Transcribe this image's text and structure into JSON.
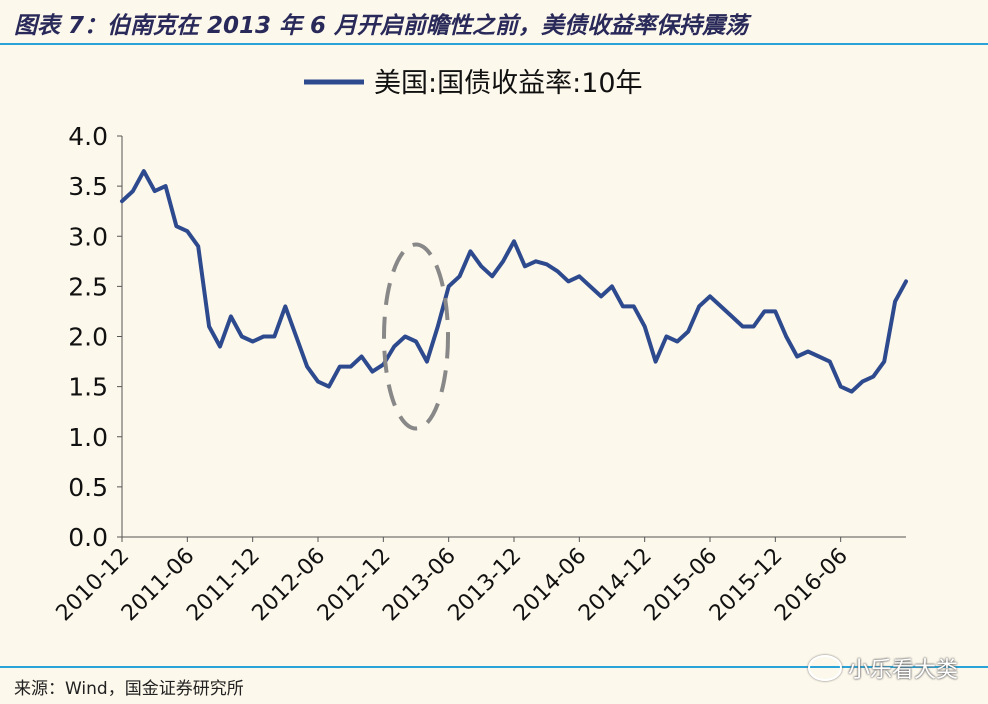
{
  "header": {
    "title": "图表 7：伯南克在 2013 年 6 月开启前瞻性之前，美债收益率保持震荡"
  },
  "footer": {
    "source": "来源：Wind，国金证券研究所",
    "watermark": "小乐看大类"
  },
  "chart_data": {
    "type": "line",
    "legend_position": "top-center",
    "grid": false,
    "ylim": [
      0,
      4
    ],
    "y_ticks": [
      "0.0",
      "0.5",
      "1.0",
      "1.5",
      "2.0",
      "2.5",
      "3.0",
      "3.5",
      "4.0"
    ],
    "x_ticks": [
      "2010-12",
      "2011-06",
      "2011-12",
      "2012-06",
      "2012-12",
      "2013-06",
      "2013-12",
      "2014-06",
      "2014-12",
      "2015-06",
      "2015-12",
      "2016-06"
    ],
    "series": [
      {
        "name": "美国:国债收益率:10年",
        "color": "#2e4a8e",
        "x": [
          "2010-12",
          "2011-01",
          "2011-02",
          "2011-03",
          "2011-04",
          "2011-05",
          "2011-06",
          "2011-07",
          "2011-08",
          "2011-09",
          "2011-10",
          "2011-11",
          "2011-12",
          "2012-01",
          "2012-02",
          "2012-03",
          "2012-04",
          "2012-05",
          "2012-06",
          "2012-07",
          "2012-08",
          "2012-09",
          "2012-10",
          "2012-11",
          "2012-12",
          "2013-01",
          "2013-02",
          "2013-03",
          "2013-04",
          "2013-05",
          "2013-06",
          "2013-07",
          "2013-08",
          "2013-09",
          "2013-10",
          "2013-11",
          "2013-12",
          "2014-01",
          "2014-02",
          "2014-03",
          "2014-04",
          "2014-05",
          "2014-06",
          "2014-07",
          "2014-08",
          "2014-09",
          "2014-10",
          "2014-11",
          "2014-12",
          "2015-01",
          "2015-02",
          "2015-03",
          "2015-04",
          "2015-05",
          "2015-06",
          "2015-07",
          "2015-08",
          "2015-09",
          "2015-10",
          "2015-11",
          "2015-12",
          "2016-01",
          "2016-02",
          "2016-03",
          "2016-04",
          "2016-05",
          "2016-06",
          "2016-07",
          "2016-08",
          "2016-09",
          "2016-10",
          "2016-11",
          "2016-12"
        ],
        "values": [
          3.35,
          3.45,
          3.65,
          3.45,
          3.5,
          3.1,
          3.05,
          2.9,
          2.1,
          1.9,
          2.2,
          2.0,
          1.95,
          2.0,
          2.0,
          2.3,
          2.0,
          1.7,
          1.55,
          1.5,
          1.7,
          1.7,
          1.8,
          1.65,
          1.72,
          1.9,
          2.0,
          1.95,
          1.75,
          2.1,
          2.5,
          2.6,
          2.85,
          2.7,
          2.6,
          2.75,
          2.95,
          2.7,
          2.75,
          2.72,
          2.65,
          2.55,
          2.6,
          2.5,
          2.4,
          2.5,
          2.3,
          2.3,
          2.1,
          1.75,
          2.0,
          1.95,
          2.05,
          2.3,
          2.4,
          2.3,
          2.2,
          2.1,
          2.1,
          2.25,
          2.25,
          2.0,
          1.8,
          1.85,
          1.8,
          1.75,
          1.5,
          1.45,
          1.55,
          1.6,
          1.75,
          2.35,
          2.55
        ]
      }
    ]
  }
}
